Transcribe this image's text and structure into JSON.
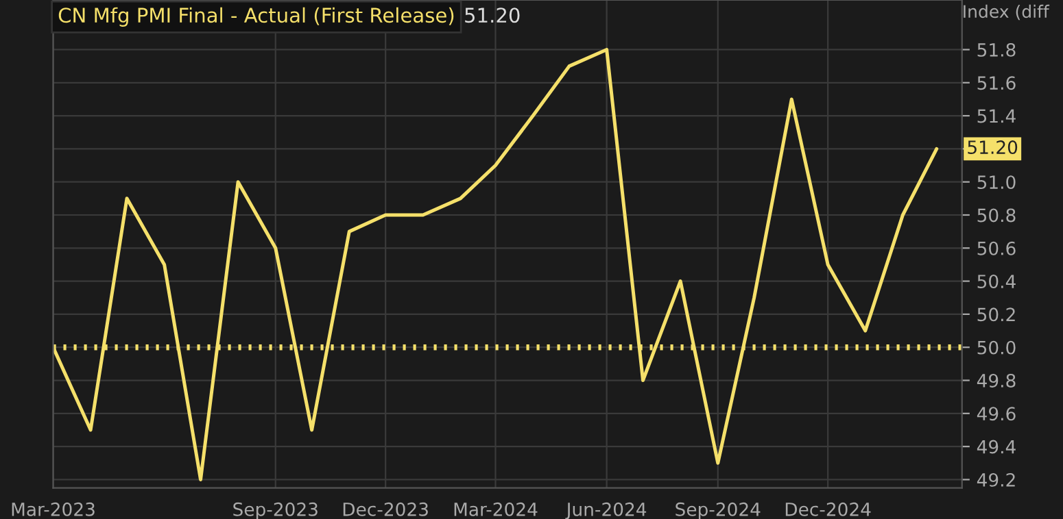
{
  "chart_data": {
    "type": "line",
    "title": "CN Mfg PMI Final - Actual (First Release)",
    "subtitle": "51.20",
    "ylabel": "Index (diff",
    "x": [
      "2023-03",
      "2023-04",
      "2023-05",
      "2023-06",
      "2023-07",
      "2023-08",
      "2023-09",
      "2023-10",
      "2023-11",
      "2023-12",
      "2024-01",
      "2024-02",
      "2024-03",
      "2024-04",
      "2024-05",
      "2024-06",
      "2024-07",
      "2024-08",
      "2024-09",
      "2024-10",
      "2024-11",
      "2024-12",
      "2025-01",
      "2025-02",
      "2025-03"
    ],
    "series": [
      {
        "color": "#f5e06a",
        "values": [
          50.0,
          49.5,
          50.9,
          50.5,
          49.2,
          51.0,
          50.6,
          49.5,
          50.7,
          50.8,
          50.8,
          50.9,
          51.1,
          51.4,
          51.7,
          51.8,
          49.8,
          50.4,
          49.3,
          50.3,
          51.5,
          50.5,
          50.1,
          50.8,
          51.2
        ]
      }
    ],
    "xlim": [
      "2023-03-01",
      "2025-03-22"
    ],
    "xticks": [
      {
        "value": "2023-03",
        "label": "Mar-2023"
      },
      {
        "value": "2023-09",
        "label": "Sep-2023"
      },
      {
        "value": "2023-12",
        "label": "Dec-2023"
      },
      {
        "value": "2024-03",
        "label": "Mar-2024"
      },
      {
        "value": "2024-06",
        "label": "Jun-2024"
      },
      {
        "value": "2024-09",
        "label": "Sep-2024"
      },
      {
        "value": "2024-12",
        "label": "Dec-2024"
      }
    ],
    "ylim": [
      49.15,
      52.1
    ],
    "yticks": [
      {
        "value": 49.2,
        "label": "49.2"
      },
      {
        "value": 49.4,
        "label": "49.4"
      },
      {
        "value": 49.6,
        "label": "49.6"
      },
      {
        "value": 49.8,
        "label": "49.8"
      },
      {
        "value": 50.0,
        "label": "50.0"
      },
      {
        "value": 50.2,
        "label": "50.2"
      },
      {
        "value": 50.4,
        "label": "50.4"
      },
      {
        "value": 50.6,
        "label": "50.6"
      },
      {
        "value": 50.8,
        "label": "50.8"
      },
      {
        "value": 51.0,
        "label": "51.0"
      },
      {
        "value": 51.2,
        "label": null
      },
      {
        "value": 51.4,
        "label": "51.4"
      },
      {
        "value": 51.6,
        "label": "51.6"
      },
      {
        "value": 51.8,
        "label": "51.8"
      }
    ],
    "annotations": [
      {
        "text": "51.20",
        "x": "2025-03",
        "y": 51.2
      }
    ],
    "ref_lines": [
      {
        "axis": "y",
        "value": 50.0,
        "color": "#f5e06a",
        "line_style": "dotted"
      }
    ],
    "grid": true,
    "marker": "none",
    "line_style": "solid"
  }
}
